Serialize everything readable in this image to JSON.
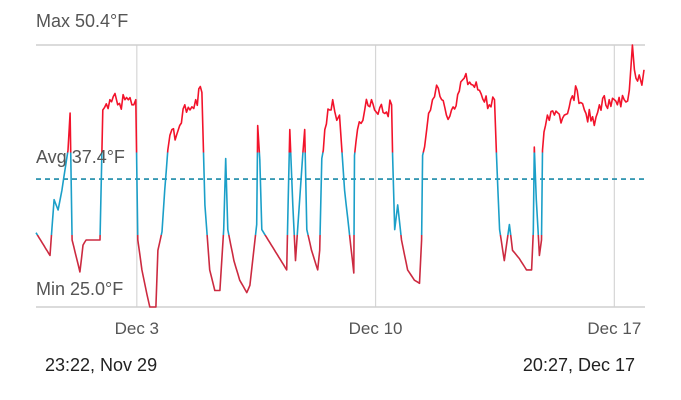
{
  "chart_data": {
    "type": "line",
    "unit": "°F",
    "max_label": "Max 50.4°F",
    "avg_label": "Avg 37.4°F",
    "min_label": "Min 25.0°F",
    "max": 50.4,
    "avg": 37.4,
    "min": 25.0,
    "ylim": [
      25.0,
      50.4
    ],
    "xlim_days": [
      0,
      17.88
    ],
    "x_unit": "days since 23:22, Nov 29",
    "thresholds": {
      "high": 40,
      "low": 32
    },
    "colors": {
      "high": "#f2132b",
      "mid": "#1b9fc8",
      "low": "#cc2a40",
      "avg": "#1a8aa8",
      "grid": "#d6d6d6"
    },
    "x_ticks": [
      {
        "label": "Dec 3",
        "day": 2.96
      },
      {
        "label": "Dec 10",
        "day": 9.97
      },
      {
        "label": "Dec 17",
        "day": 16.98
      }
    ],
    "start_label": "23:22, Nov 29",
    "end_label": "20:27, Dec 17",
    "points": [
      [
        0,
        32.2
      ],
      [
        0.41,
        30.0
      ],
      [
        0.53,
        35.4
      ],
      [
        0.65,
        34.4
      ],
      [
        0.76,
        36.3
      ],
      [
        0.85,
        38.3
      ],
      [
        0.94,
        40.2
      ],
      [
        1.0,
        43.8
      ],
      [
        1.06,
        31.5
      ],
      [
        1.29,
        28.4
      ],
      [
        1.38,
        31.0
      ],
      [
        1.47,
        31.5
      ],
      [
        1.88,
        31.5
      ],
      [
        1.96,
        44.1
      ],
      [
        2.17,
        45.1
      ],
      [
        2.32,
        45.7
      ],
      [
        2.4,
        44.6
      ],
      [
        2.61,
        45.1
      ],
      [
        2.76,
        45.3
      ],
      [
        2.87,
        44.6
      ],
      [
        2.93,
        45.1
      ],
      [
        2.99,
        31.5
      ],
      [
        3.11,
        28.6
      ],
      [
        3.26,
        26.2
      ],
      [
        3.34,
        25.0
      ],
      [
        3.52,
        25.0
      ],
      [
        3.58,
        30.5
      ],
      [
        3.7,
        32.3
      ],
      [
        3.78,
        36.3
      ],
      [
        3.87,
        40.2
      ],
      [
        3.99,
        42.2
      ],
      [
        4.13,
        41.7
      ],
      [
        4.22,
        42.6
      ],
      [
        4.37,
        44.6
      ],
      [
        4.52,
        44.1
      ],
      [
        4.69,
        45.1
      ],
      [
        4.87,
        45.8
      ],
      [
        4.96,
        34.9
      ],
      [
        5.1,
        28.6
      ],
      [
        5.25,
        26.6
      ],
      [
        5.4,
        26.6
      ],
      [
        5.51,
        32.5
      ],
      [
        5.57,
        39.4
      ],
      [
        5.63,
        32.5
      ],
      [
        5.81,
        29.5
      ],
      [
        5.98,
        27.6
      ],
      [
        6.19,
        26.4
      ],
      [
        6.28,
        27.1
      ],
      [
        6.48,
        33.0
      ],
      [
        6.51,
        42.6
      ],
      [
        6.57,
        39.3
      ],
      [
        6.63,
        32.5
      ],
      [
        7.36,
        28.6
      ],
      [
        7.45,
        42.2
      ],
      [
        7.54,
        34.9
      ],
      [
        7.62,
        29.5
      ],
      [
        7.83,
        39.7
      ],
      [
        7.89,
        42.2
      ],
      [
        7.95,
        32.5
      ],
      [
        8.09,
        30.5
      ],
      [
        8.27,
        28.6
      ],
      [
        8.33,
        30.5
      ],
      [
        8.39,
        39.4
      ],
      [
        8.48,
        42.2
      ],
      [
        8.62,
        44.1
      ],
      [
        8.71,
        45.1
      ],
      [
        8.83,
        43.1
      ],
      [
        8.91,
        43.6
      ],
      [
        9.06,
        36.3
      ],
      [
        9.33,
        28.3
      ],
      [
        9.35,
        39.7
      ],
      [
        9.44,
        42.2
      ],
      [
        9.65,
        44.1
      ],
      [
        9.85,
        45.1
      ],
      [
        9.94,
        44.1
      ],
      [
        10.09,
        44.3
      ],
      [
        10.29,
        43.9
      ],
      [
        10.44,
        44.6
      ],
      [
        10.47,
        39.7
      ],
      [
        10.53,
        32.5
      ],
      [
        10.62,
        34.9
      ],
      [
        10.73,
        31.5
      ],
      [
        10.91,
        28.6
      ],
      [
        11.11,
        27.6
      ],
      [
        11.26,
        27.3
      ],
      [
        11.32,
        31.5
      ],
      [
        11.35,
        39.7
      ],
      [
        11.47,
        42.2
      ],
      [
        11.64,
        45.1
      ],
      [
        11.76,
        46.5
      ],
      [
        11.91,
        45.1
      ],
      [
        12.05,
        43.6
      ],
      [
        12.2,
        44.1
      ],
      [
        12.38,
        45.6
      ],
      [
        12.52,
        47.0
      ],
      [
        12.73,
        46.8
      ],
      [
        13.02,
        46.0
      ],
      [
        13.31,
        44.6
      ],
      [
        13.46,
        45.1
      ],
      [
        13.52,
        39.7
      ],
      [
        13.61,
        32.5
      ],
      [
        13.75,
        29.5
      ],
      [
        13.9,
        33.0
      ],
      [
        13.99,
        30.5
      ],
      [
        14.19,
        29.7
      ],
      [
        14.4,
        28.6
      ],
      [
        14.55,
        28.6
      ],
      [
        14.6,
        32.3
      ],
      [
        14.63,
        40.5
      ],
      [
        14.69,
        35.4
      ],
      [
        14.78,
        30.0
      ],
      [
        14.84,
        31.5
      ],
      [
        14.87,
        40.2
      ],
      [
        14.96,
        42.6
      ],
      [
        15.07,
        43.1
      ],
      [
        15.22,
        43.6
      ],
      [
        15.51,
        43.6
      ],
      [
        15.89,
        46.0
      ],
      [
        16.1,
        44.1
      ],
      [
        16.39,
        42.6
      ],
      [
        16.54,
        44.6
      ],
      [
        16.83,
        45.1
      ],
      [
        17.07,
        44.6
      ],
      [
        17.27,
        45.1
      ],
      [
        17.42,
        46.0
      ],
      [
        17.51,
        50.4
      ],
      [
        17.57,
        48.0
      ],
      [
        17.71,
        47.5
      ],
      [
        17.79,
        46.5
      ],
      [
        17.85,
        48.0
      ]
    ]
  }
}
